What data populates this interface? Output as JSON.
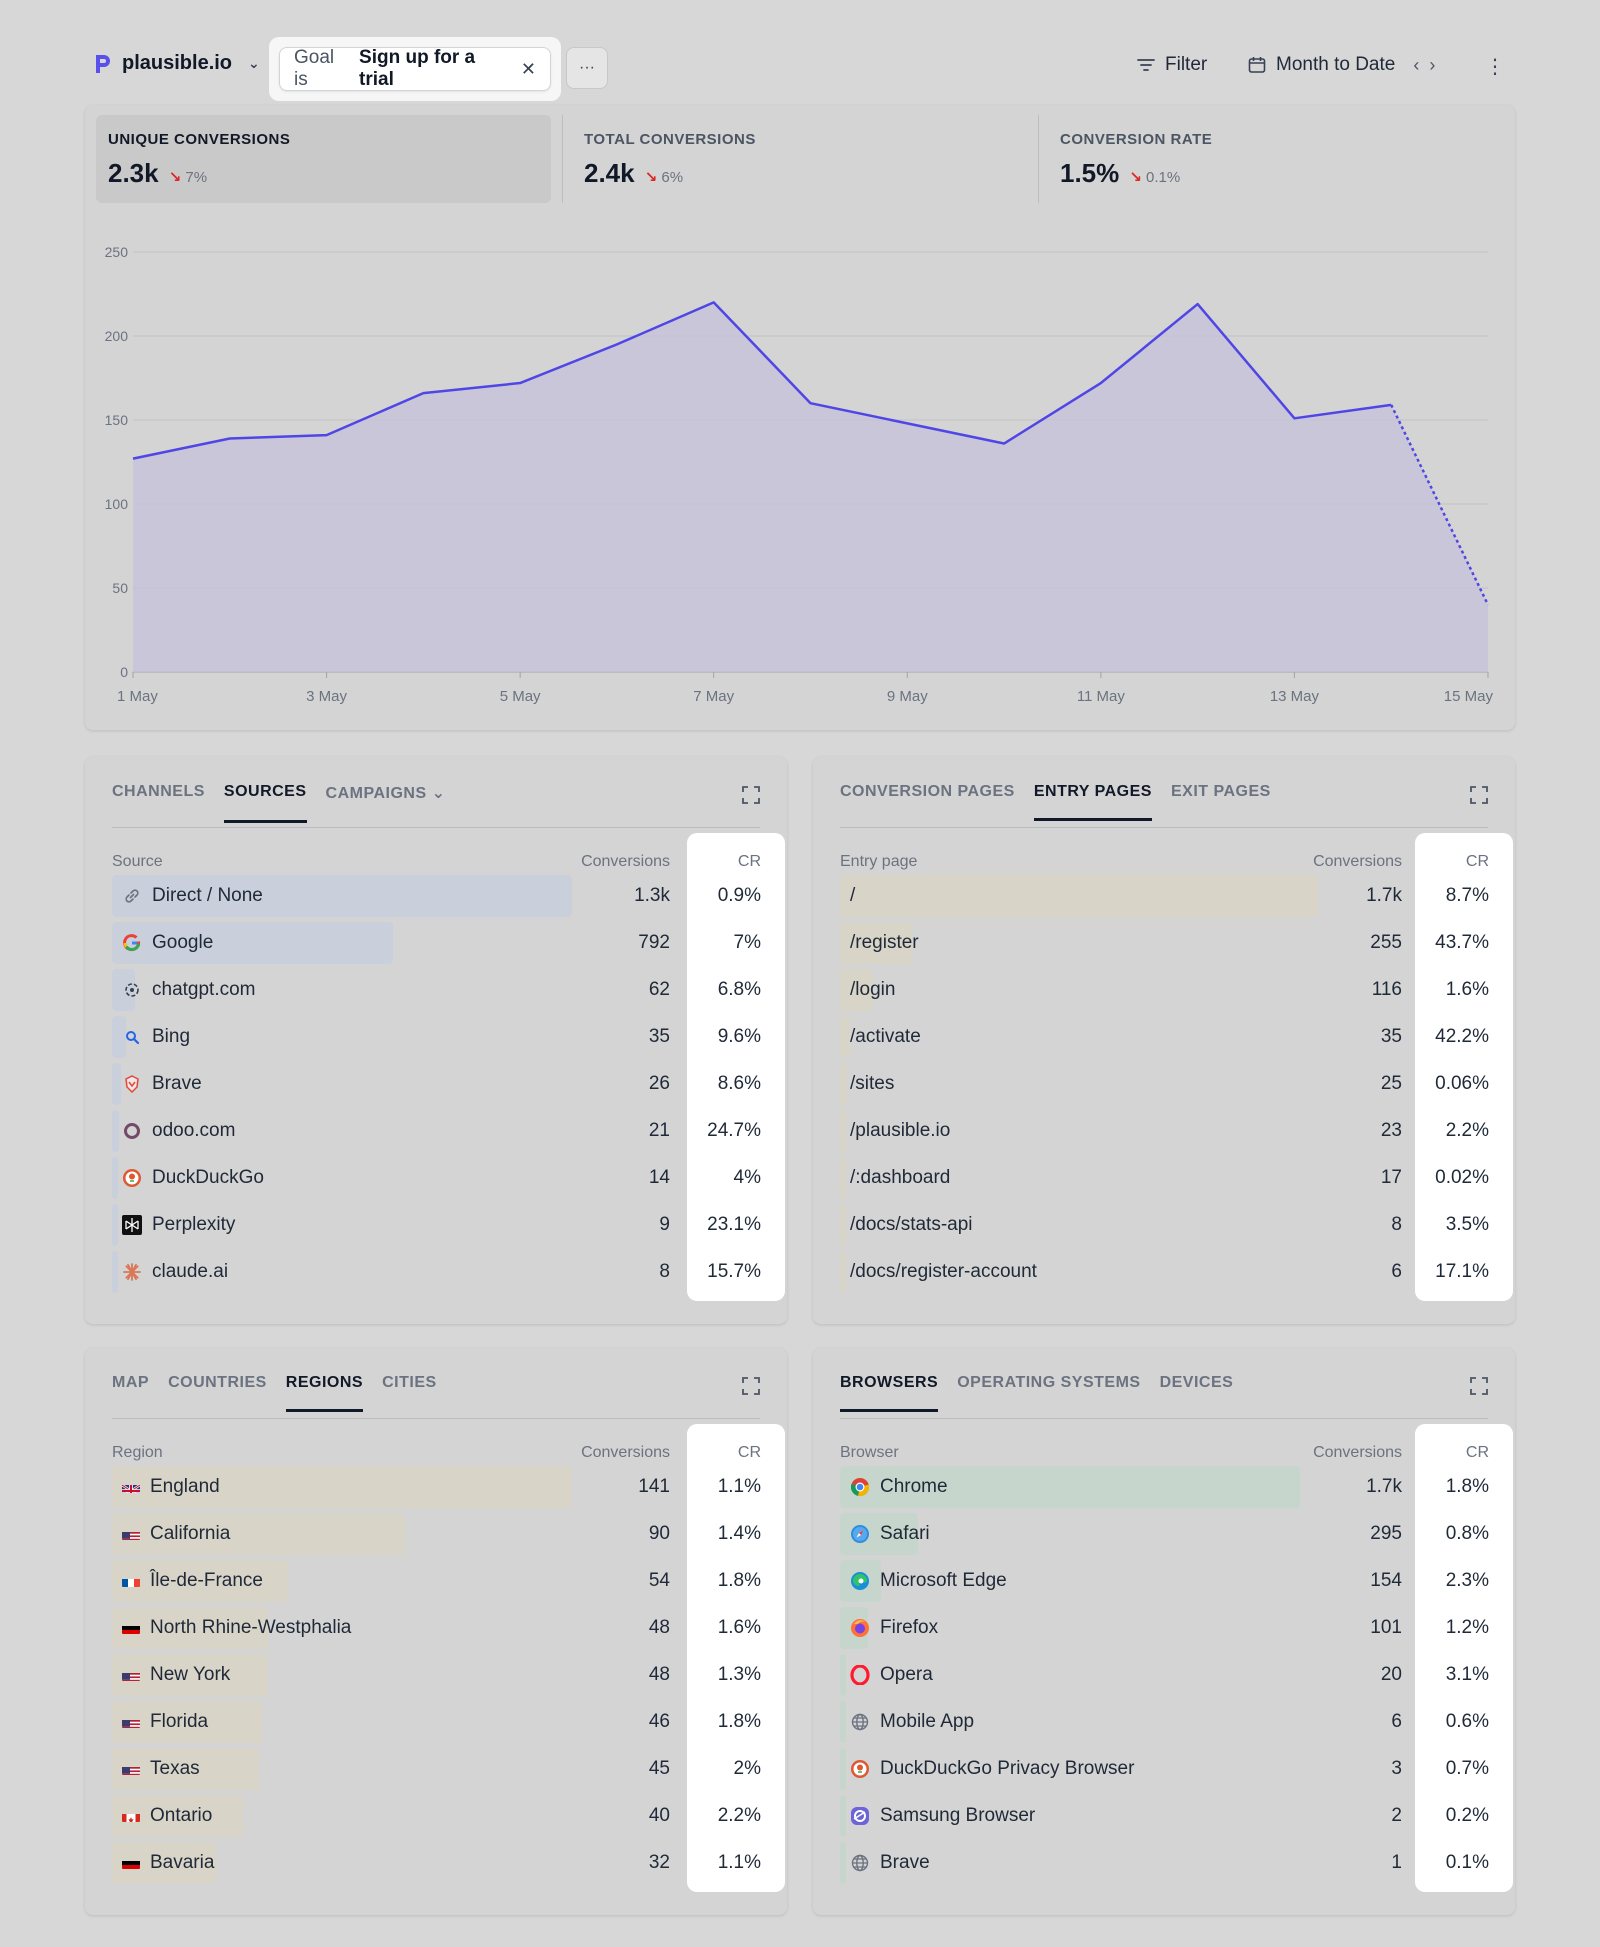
{
  "header": {
    "site": "plausible.io",
    "goal_prefix": "Goal is",
    "goal_value": "Sign up for a trial",
    "more_label": "···",
    "filter_label": "Filter",
    "period_label": "Month to Date"
  },
  "metrics": [
    {
      "label": "UNIQUE CONVERSIONS",
      "value": "2.3k",
      "change": "7%"
    },
    {
      "label": "TOTAL CONVERSIONS",
      "value": "2.4k",
      "change": "6%"
    },
    {
      "label": "CONVERSION RATE",
      "value": "1.5%",
      "change": "0.1%"
    }
  ],
  "colors": {
    "line": "#4f46e5",
    "fill": "#c4c1da",
    "cr_bg": "#ffffff"
  },
  "chart_data": {
    "type": "line",
    "x": [
      "1 May",
      "2 May",
      "3 May",
      "4 May",
      "5 May",
      "6 May",
      "7 May",
      "8 May",
      "9 May",
      "10 May",
      "11 May",
      "12 May",
      "13 May",
      "14 May",
      "15 May"
    ],
    "x_tick_labels": [
      "1 May",
      "3 May",
      "5 May",
      "7 May",
      "9 May",
      "11 May",
      "13 May",
      "15 May"
    ],
    "series": [
      {
        "values": [
          127,
          139,
          141,
          166,
          172,
          195,
          220,
          160,
          148,
          136,
          172,
          219,
          151,
          159,
          40
        ]
      }
    ],
    "dashed_last_segment": true,
    "ylim": [
      0,
      250
    ],
    "y_ticks": [
      0,
      50,
      100,
      150,
      200,
      250
    ],
    "grid": true
  },
  "sources": {
    "tabs": [
      "CHANNELS",
      "SOURCES",
      "CAMPAIGNS"
    ],
    "active": 1,
    "col_name": "Source",
    "col_conv": "Conversions",
    "col_cr": "CR",
    "bar_color": "#c9d0dc",
    "rows": [
      {
        "name": "Direct / None",
        "icon": "link-icon",
        "conv": "1.3k",
        "cr": "0.9%",
        "share": 1.0
      },
      {
        "name": "Google",
        "icon": "google-icon",
        "conv": "792",
        "cr": "7%",
        "share": 0.61
      },
      {
        "name": "chatgpt.com",
        "icon": "chatgpt-icon",
        "conv": "62",
        "cr": "6.8%",
        "share": 0.05
      },
      {
        "name": "Bing",
        "icon": "bing-icon",
        "conv": "35",
        "cr": "9.6%",
        "share": 0.03
      },
      {
        "name": "Brave",
        "icon": "brave-icon",
        "conv": "26",
        "cr": "8.6%",
        "share": 0.02
      },
      {
        "name": "odoo.com",
        "icon": "odoo-icon",
        "conv": "21",
        "cr": "24.7%",
        "share": 0.016
      },
      {
        "name": "DuckDuckGo",
        "icon": "duckduckgo-icon",
        "conv": "14",
        "cr": "4%",
        "share": 0.011
      },
      {
        "name": "Perplexity",
        "icon": "perplexity-icon",
        "conv": "9",
        "cr": "23.1%",
        "share": 0.007
      },
      {
        "name": "claude.ai",
        "icon": "claude-icon",
        "conv": "8",
        "cr": "15.7%",
        "share": 0.006
      }
    ]
  },
  "pages": {
    "tabs": [
      "CONVERSION PAGES",
      "ENTRY PAGES",
      "EXIT PAGES"
    ],
    "active": 1,
    "col_name": "Entry page",
    "col_conv": "Conversions",
    "col_cr": "CR",
    "bar_color": "#d9d4c8",
    "rows": [
      {
        "name": "/",
        "conv": "1.7k",
        "cr": "8.7%",
        "share": 1.0
      },
      {
        "name": "/register",
        "conv": "255",
        "cr": "43.7%",
        "share": 0.15
      },
      {
        "name": "/login",
        "conv": "116",
        "cr": "1.6%",
        "share": 0.068
      },
      {
        "name": "/activate",
        "conv": "35",
        "cr": "42.2%",
        "share": 0.02
      },
      {
        "name": "/sites",
        "conv": "25",
        "cr": "0.06%",
        "share": 0.015
      },
      {
        "name": "/plausible.io",
        "conv": "23",
        "cr": "2.2%",
        "share": 0.013
      },
      {
        "name": "/:dashboard",
        "conv": "17",
        "cr": "0.02%",
        "share": 0.01
      },
      {
        "name": "/docs/stats-api",
        "conv": "8",
        "cr": "3.5%",
        "share": 0.005
      },
      {
        "name": "/docs/register-account",
        "conv": "6",
        "cr": "17.1%",
        "share": 0.004
      }
    ]
  },
  "regions": {
    "tabs": [
      "MAP",
      "COUNTRIES",
      "REGIONS",
      "CITIES"
    ],
    "active": 2,
    "col_name": "Region",
    "col_conv": "Conversions",
    "col_cr": "CR",
    "bar_color": "#d9d4c8",
    "rows": [
      {
        "name": "England",
        "flag": "gb",
        "conv": "141",
        "cr": "1.1%",
        "share": 1.0
      },
      {
        "name": "California",
        "flag": "us",
        "conv": "90",
        "cr": "1.4%",
        "share": 0.638
      },
      {
        "name": "Île-de-France",
        "flag": "fr",
        "conv": "54",
        "cr": "1.8%",
        "share": 0.383
      },
      {
        "name": "North Rhine-Westphalia",
        "flag": "de",
        "conv": "48",
        "cr": "1.6%",
        "share": 0.34
      },
      {
        "name": "New York",
        "flag": "us",
        "conv": "48",
        "cr": "1.3%",
        "share": 0.34
      },
      {
        "name": "Florida",
        "flag": "us",
        "conv": "46",
        "cr": "1.8%",
        "share": 0.326
      },
      {
        "name": "Texas",
        "flag": "us",
        "conv": "45",
        "cr": "2%",
        "share": 0.319
      },
      {
        "name": "Ontario",
        "flag": "ca",
        "conv": "40",
        "cr": "2.2%",
        "share": 0.284
      },
      {
        "name": "Bavaria",
        "flag": "de",
        "conv": "32",
        "cr": "1.1%",
        "share": 0.227
      }
    ]
  },
  "browsers": {
    "tabs": [
      "BROWSERS",
      "OPERATING SYSTEMS",
      "DEVICES"
    ],
    "active": 0,
    "col_name": "Browser",
    "col_conv": "Conversions",
    "col_cr": "CR",
    "bar_color": "#c7d6cc",
    "rows": [
      {
        "name": "Chrome",
        "icon": "chrome-icon",
        "conv": "1.7k",
        "cr": "1.8%",
        "share": 1.0
      },
      {
        "name": "Safari",
        "icon": "safari-icon",
        "conv": "295",
        "cr": "0.8%",
        "share": 0.17
      },
      {
        "name": "Microsoft Edge",
        "icon": "edge-icon",
        "conv": "154",
        "cr": "2.3%",
        "share": 0.09
      },
      {
        "name": "Firefox",
        "icon": "firefox-icon",
        "conv": "101",
        "cr": "1.2%",
        "share": 0.06
      },
      {
        "name": "Opera",
        "icon": "opera-icon",
        "conv": "20",
        "cr": "3.1%",
        "share": 0.012
      },
      {
        "name": "Mobile App",
        "icon": "globe-icon",
        "conv": "6",
        "cr": "0.6%",
        "share": 0.004
      },
      {
        "name": "DuckDuckGo Privacy Browser",
        "icon": "duckduckgo-icon",
        "conv": "3",
        "cr": "0.7%",
        "share": 0.002
      },
      {
        "name": "Samsung Browser",
        "icon": "samsung-icon",
        "conv": "2",
        "cr": "0.2%",
        "share": 0.001
      },
      {
        "name": "Brave",
        "icon": "globe-icon",
        "conv": "1",
        "cr": "0.1%",
        "share": 0.001
      }
    ]
  }
}
